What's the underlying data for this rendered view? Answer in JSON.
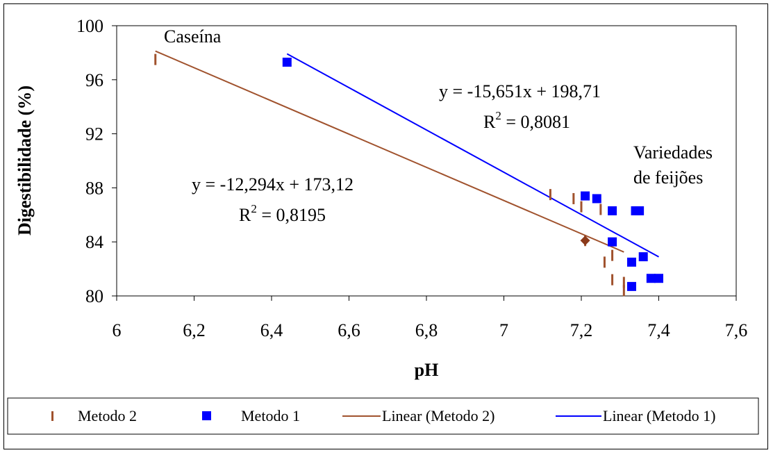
{
  "chart_data": {
    "type": "scatter",
    "xlabel": "pH",
    "ylabel": "Digestibilidade (%)",
    "xlim": [
      6,
      7.6
    ],
    "ylim": [
      80,
      100
    ],
    "x_ticks": [
      "6",
      "6,2",
      "6,4",
      "6,6",
      "6,8",
      "7",
      "7,2",
      "7,4",
      "7,6"
    ],
    "y_ticks": [
      "80",
      "84",
      "88",
      "92",
      "96",
      "100"
    ],
    "grid": false,
    "legend_placement": "bottom",
    "series": [
      {
        "name": "Metodo 2",
        "marker": "dash",
        "color": "#a0522d",
        "points": [
          [
            6.1,
            97.5
          ],
          [
            7.12,
            87.5
          ],
          [
            7.18,
            87.2
          ],
          [
            7.2,
            86.6
          ],
          [
            7.25,
            86.4
          ],
          [
            7.28,
            83.0
          ],
          [
            7.26,
            82.5
          ],
          [
            7.28,
            81.2
          ],
          [
            7.31,
            81.0
          ],
          [
            7.31,
            80.4
          ],
          [
            7.21,
            84.1
          ]
        ]
      },
      {
        "name": "Metodo 1",
        "marker": "square",
        "color": "#0000ff",
        "points": [
          [
            6.44,
            97.3
          ],
          [
            7.21,
            87.4
          ],
          [
            7.24,
            87.2
          ],
          [
            7.28,
            86.3
          ],
          [
            7.34,
            86.3
          ],
          [
            7.35,
            86.3
          ],
          [
            7.28,
            84.0
          ],
          [
            7.36,
            82.9
          ],
          [
            7.33,
            82.5
          ],
          [
            7.38,
            81.3
          ],
          [
            7.4,
            81.3
          ],
          [
            7.33,
            80.7
          ]
        ]
      },
      {
        "name": "Linear (Metodo 2)",
        "type": "line",
        "color": "#a0522d",
        "points": [
          [
            6.1,
            98.12
          ],
          [
            7.31,
            83.25
          ]
        ]
      },
      {
        "name": "Linear (Metodo 1)",
        "type": "line",
        "color": "#0000ff",
        "points": [
          [
            6.44,
            97.92
          ],
          [
            7.4,
            82.89
          ]
        ]
      }
    ],
    "annotations": [
      {
        "text": "Caseína"
      },
      {
        "text": "Variedades"
      },
      {
        "text": "de feijões"
      },
      {
        "text_main": "y = -15,651x + 198,71",
        "r2_prefix": "R",
        "r2_sup": "2",
        "r2_value": " = 0,8081"
      },
      {
        "text_main": "y = -12,294x + 173,12",
        "r2_prefix": "R",
        "r2_sup": "2",
        "r2_value": " = 0,8195"
      }
    ]
  }
}
